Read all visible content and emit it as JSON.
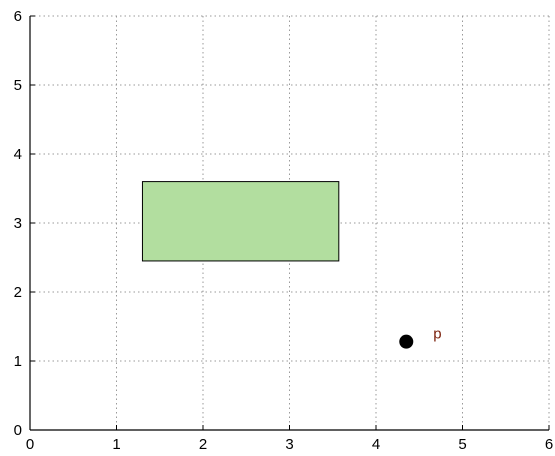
{
  "chart_data": {
    "type": "scatter",
    "title": "",
    "xlabel": "",
    "ylabel": "",
    "xlim": [
      0,
      6
    ],
    "ylim": [
      0,
      6
    ],
    "xticks": [
      "0",
      "1",
      "2",
      "3",
      "4",
      "5",
      "6"
    ],
    "yticks": [
      "0",
      "1",
      "2",
      "3",
      "4",
      "5",
      "6"
    ],
    "grid": true,
    "rectangle": {
      "x": [
        1.3,
        3.57
      ],
      "y": [
        2.45,
        3.6
      ],
      "fill": "#b2de9f",
      "stroke": "#000000"
    },
    "points": [
      {
        "x": 4.35,
        "y": 1.28,
        "label": "p",
        "color": "#000000",
        "label_color": "#7a1f0a"
      }
    ]
  }
}
